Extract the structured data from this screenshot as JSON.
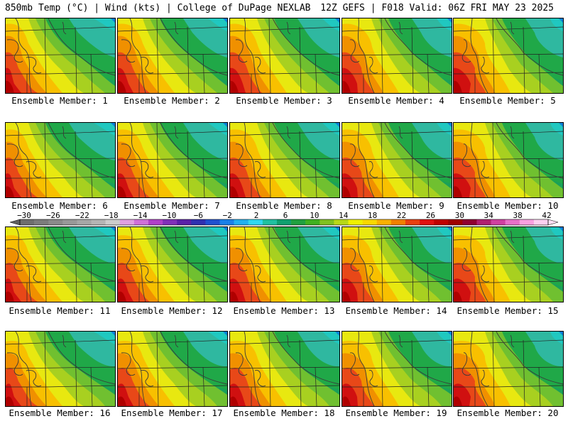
{
  "header": {
    "left": "850mb Temp (°C) | Wind (kts) | College of DuPage NEXLAB",
    "right": "12Z GEFS | F018 Valid: 06Z FRI MAY 23 2025"
  },
  "panels": [
    {
      "label": "Ensemble Member: 1"
    },
    {
      "label": "Ensemble Member: 2"
    },
    {
      "label": "Ensemble Member: 3"
    },
    {
      "label": "Ensemble Member: 4"
    },
    {
      "label": "Ensemble Member: 5"
    },
    {
      "label": "Ensemble Member: 6"
    },
    {
      "label": "Ensemble Member: 7"
    },
    {
      "label": "Ensemble Member: 8"
    },
    {
      "label": "Ensemble Member: 9"
    },
    {
      "label": "Ensemble Member: 10"
    },
    {
      "label": "Ensemble Member: 11"
    },
    {
      "label": "Ensemble Member: 12"
    },
    {
      "label": "Ensemble Member: 13"
    },
    {
      "label": "Ensemble Member: 14"
    },
    {
      "label": "Ensemble Member: 15"
    },
    {
      "label": "Ensemble Member: 16"
    },
    {
      "label": "Ensemble Member: 17"
    },
    {
      "label": "Ensemble Member: 18"
    },
    {
      "label": "Ensemble Member: 19"
    },
    {
      "label": "Ensemble Member: 20"
    }
  ],
  "colorbar": {
    "labels": [
      "−30",
      "−26",
      "−22",
      "−18",
      "−14",
      "−10",
      "−6",
      "−2",
      "2",
      "6",
      "10",
      "14",
      "18",
      "22",
      "26",
      "30",
      "34",
      "38",
      "42"
    ],
    "colors": [
      "#6e6e6e",
      "#7c7c7c",
      "#8a8a8a",
      "#989898",
      "#a6a6a6",
      "#b4b4b4",
      "#cccccc",
      "#e0a0e0",
      "#d070d8",
      "#b040c8",
      "#8030b8",
      "#5a20a8",
      "#3030b0",
      "#2050d0",
      "#1a80e8",
      "#20b0f0",
      "#30d8f0",
      "#20c0a0",
      "#10a070",
      "#20a040",
      "#40b020",
      "#80c020",
      "#b8d818",
      "#f0f000",
      "#f8d800",
      "#f8b000",
      "#f08000",
      "#e84010",
      "#e01010",
      "#c00000",
      "#a00000",
      "#900030",
      "#b02070",
      "#d040a0",
      "#e870c8",
      "#f8a0e0",
      "#fcd0f0"
    ]
  }
}
